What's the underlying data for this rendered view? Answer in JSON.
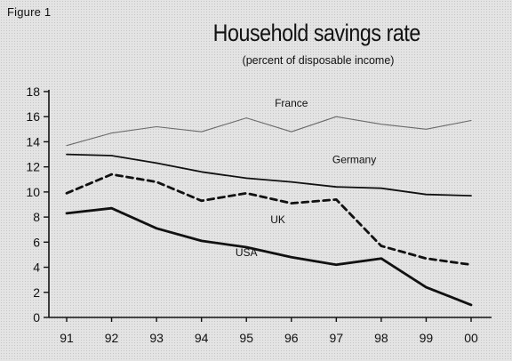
{
  "figure_label": "Figure 1",
  "chart_data": {
    "type": "line",
    "title": "Household savings rate",
    "subtitle": "(percent of disposable income)",
    "x": [
      "91",
      "92",
      "93",
      "94",
      "95",
      "96",
      "97",
      "98",
      "99",
      "00"
    ],
    "ylim": [
      0,
      18
    ],
    "yticks": [
      0,
      2,
      4,
      6,
      8,
      10,
      12,
      14,
      16,
      18
    ],
    "grid": false,
    "legend": "inline labels",
    "series": [
      {
        "name": "France",
        "values": [
          13.7,
          14.7,
          15.2,
          14.8,
          15.9,
          14.8,
          16.0,
          15.4,
          15.0,
          15.7
        ],
        "color": "#6a6a6a",
        "style": "thin-solid",
        "label_at": [
          5.0,
          16.8
        ]
      },
      {
        "name": "Germany",
        "values": [
          13.0,
          12.9,
          12.3,
          11.6,
          11.1,
          10.8,
          10.4,
          10.3,
          9.8,
          9.7
        ],
        "color": "#111111",
        "style": "solid",
        "label_at": [
          6.4,
          12.3
        ]
      },
      {
        "name": "UK",
        "values": [
          9.9,
          11.4,
          10.8,
          9.3,
          9.9,
          9.1,
          9.4,
          5.7,
          4.7,
          4.2
        ],
        "color": "#111111",
        "style": "dashed",
        "label_at": [
          4.7,
          7.5
        ]
      },
      {
        "name": "USA",
        "values": [
          8.3,
          8.7,
          7.1,
          6.1,
          5.6,
          4.8,
          4.2,
          4.7,
          2.4,
          1.0
        ],
        "color": "#111111",
        "style": "thick-solid",
        "label_at": [
          4.0,
          4.9
        ]
      }
    ]
  }
}
